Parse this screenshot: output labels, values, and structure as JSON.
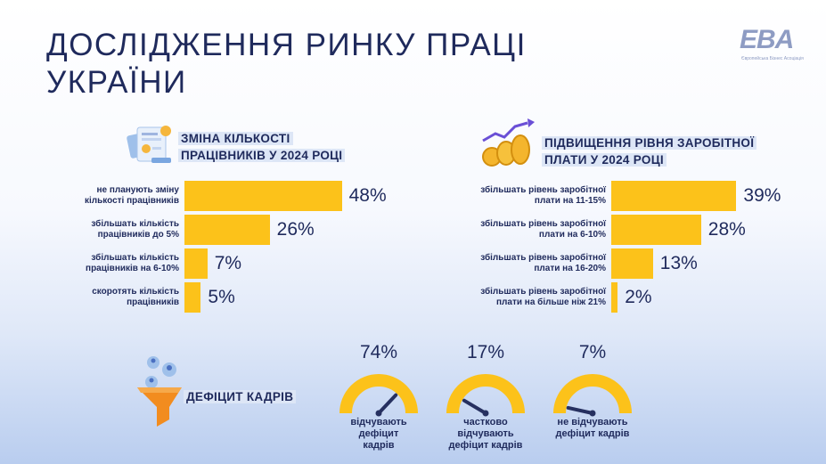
{
  "header": {
    "title_line1": "ДОСЛІДЖЕННЯ РИНКУ ПРАЦІ",
    "title_line2": "УКРАЇНИ",
    "logo_text": "EBA",
    "logo_subtitle": "Європейська Бізнес Асоціація"
  },
  "colors": {
    "bar": "#fcc21a",
    "text": "#1f2a5c",
    "highlight": "#dde6f6"
  },
  "chart_data": [
    {
      "type": "bar",
      "orientation": "horizontal",
      "title": "ЗМІНА КІЛЬКОСТІ ПРАЦІВНИКІВ У 2024 РОЦІ",
      "categories": [
        "не планують зміну кількості працівників",
        "збільшать кількість працівників до 5%",
        "збільшать кількість працівників на 6-10%",
        "скоротять кількість працівників"
      ],
      "values": [
        48,
        26,
        7,
        5
      ],
      "labels": [
        "48%",
        "26%",
        "7%",
        "5%"
      ],
      "unit": "%"
    },
    {
      "type": "bar",
      "orientation": "horizontal",
      "title": "ПІДВИЩЕННЯ РІВНЯ ЗАРОБІТНОЇ ПЛАТИ У 2024 РОЦІ",
      "categories": [
        "збільшать рівень заробітної плати на 11-15%",
        "збільшать рівень заробітної плати на 6-10%",
        "збільшать рівень заробітної плати на 16-20%",
        "збільшать рівень заробітної плати на більше ніж 21%"
      ],
      "values": [
        39,
        28,
        13,
        2
      ],
      "labels": [
        "39%",
        "28%",
        "13%",
        "2%"
      ],
      "unit": "%"
    },
    {
      "type": "gauge",
      "title": "ДЕФІЦИТ КАДРІВ",
      "categories": [
        "відчувають дефіцит кадрів",
        "частково відчувають дефіцит кадрів",
        "не відчувають дефіцит кадрів"
      ],
      "values": [
        74,
        17,
        7
      ],
      "labels": [
        "74%",
        "17%",
        "7%"
      ],
      "unit": "%"
    }
  ],
  "workforce": {
    "title_line1": "ЗМІНА КІЛЬКОСТІ",
    "title_line2": "ПРАЦІВНИКІВ У 2024 РОЦІ",
    "icon": "documents-icon",
    "rows": [
      {
        "label_line1": "не планують зміну",
        "label_line2": "кількості працівників",
        "value": "48%"
      },
      {
        "label_line1": "збільшать кількість",
        "label_line2": "працівників до 5%",
        "value": "26%"
      },
      {
        "label_line1": "збільшать кількість",
        "label_line2": "працівників на 6-10%",
        "value": "7%"
      },
      {
        "label_line1": "скоротять кількість",
        "label_line2": "працівників",
        "value": "5%"
      }
    ]
  },
  "salary": {
    "title_line1": "ПІДВИЩЕННЯ РІВНЯ ЗАРОБІТНОЇ",
    "title_line2": "ПЛАТИ У 2024 РОЦІ",
    "icon": "coins-growth-icon",
    "rows": [
      {
        "label_line1": "збільшать рівень заробітної",
        "label_line2": "плати на 11-15%",
        "value": "39%"
      },
      {
        "label_line1": "збільшать рівень заробітної",
        "label_line2": "плати на 6-10%",
        "value": "28%"
      },
      {
        "label_line1": "збільшать рівень заробітної",
        "label_line2": "плати на 16-20%",
        "value": "13%"
      },
      {
        "label_line1": "збільшать рівень заробітної",
        "label_line2": "плати на більше ніж 21%",
        "value": "2%"
      }
    ]
  },
  "deficit": {
    "title": "ДЕФІЦИТ КАДРІВ",
    "icon": "funnel-people-icon",
    "gauges": [
      {
        "value": "74%",
        "label_line1": "відчувають",
        "label_line2": "дефіцит",
        "label_line3": "кадрів"
      },
      {
        "value": "17%",
        "label_line1": "частково",
        "label_line2": "відчувають",
        "label_line3": "дефіцит кадрів"
      },
      {
        "value": "7%",
        "label_line1": "не відчувають",
        "label_line2": "дефіцит кадрів",
        "label_line3": ""
      }
    ]
  }
}
